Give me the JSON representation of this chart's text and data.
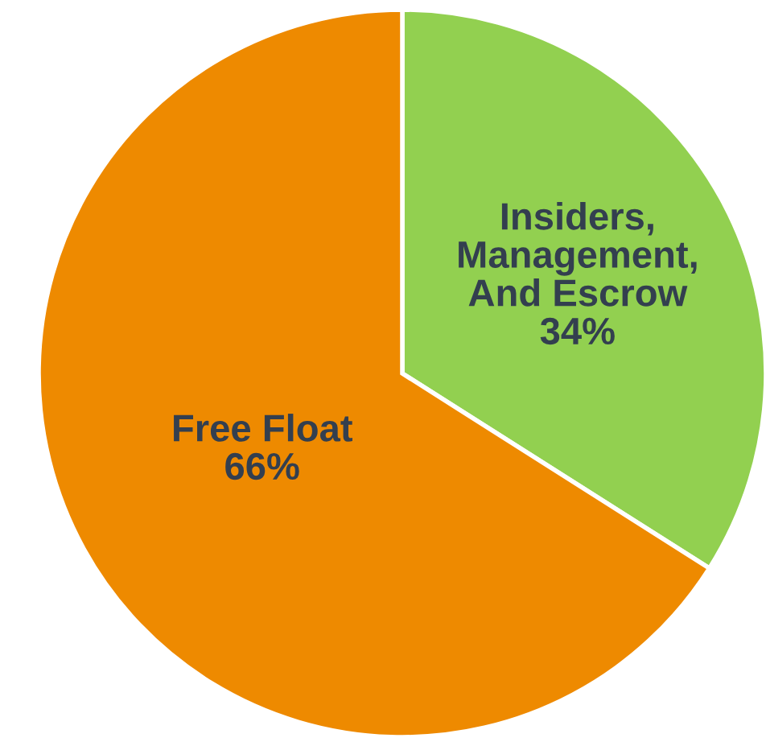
{
  "chart_data": {
    "type": "pie",
    "categories": [
      "Insiders,\nManagement,\nAnd Escrow",
      "Free Float"
    ],
    "values": [
      34,
      66
    ],
    "colors": [
      "#92d050",
      "#ee8a00"
    ],
    "value_labels": [
      "34%",
      "66%"
    ]
  }
}
